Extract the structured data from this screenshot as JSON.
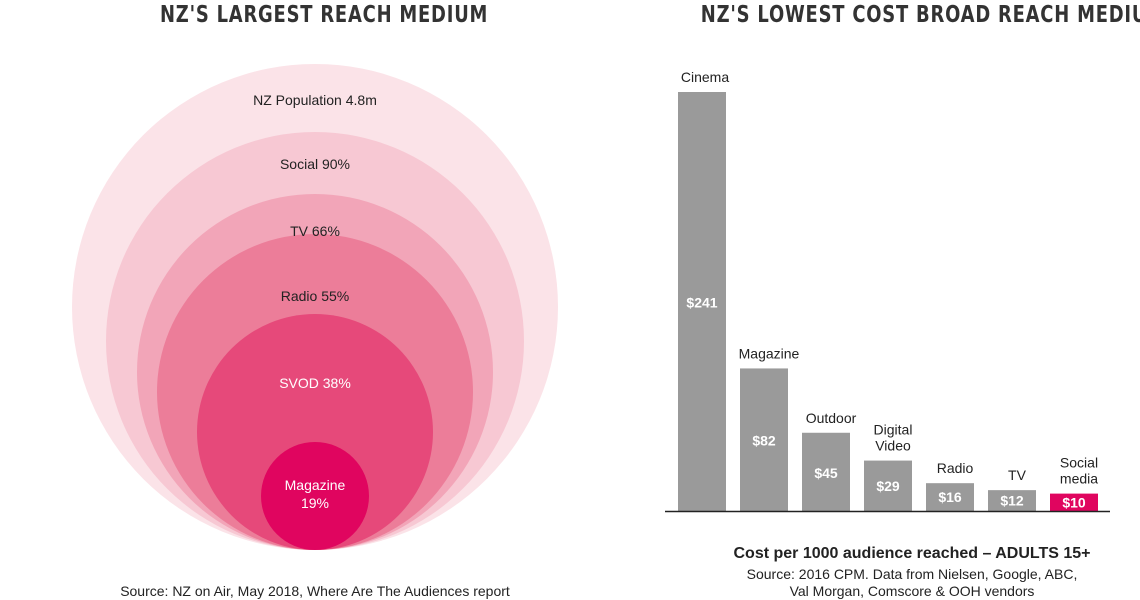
{
  "colors": {
    "ring": [
      "#fbe3e8",
      "#f7c8d3",
      "#f2a5b8",
      "#ec7d99",
      "#e6497a",
      "#e0055f"
    ],
    "bar": "#9a9a9a",
    "highlight": "#e0055f",
    "axis": "#222222"
  },
  "chart_data": [
    {
      "type": "nested-circles",
      "title": "NZ'S LARGEST REACH MEDIUM",
      "items": [
        {
          "label": "NZ Population 4.8m",
          "value": 100
        },
        {
          "label": "Social 90%",
          "value": 90
        },
        {
          "label": "TV 66%",
          "value": 66
        },
        {
          "label": "Radio 55%",
          "value": 55
        },
        {
          "label": "SVOD 38%",
          "value": 38
        },
        {
          "label": "Magazine",
          "label2": "19%",
          "value": 19
        }
      ],
      "source": "Source: NZ on Air, May 2018, Where Are The Audiences report"
    },
    {
      "type": "bar",
      "title": "NZ'S LOWEST COST BROAD REACH MEDIUM",
      "categories": [
        "Cinema",
        "Magazine",
        "Outdoor",
        "Digital Video",
        "Radio",
        "TV",
        "Social media"
      ],
      "category_lines": [
        [
          "Cinema"
        ],
        [
          "Magazine"
        ],
        [
          "Outdoor"
        ],
        [
          "Digital",
          "Video"
        ],
        [
          "Radio"
        ],
        [
          "TV"
        ],
        [
          "Social",
          "media"
        ]
      ],
      "values": [
        241,
        82,
        45,
        29,
        16,
        12,
        10
      ],
      "value_labels": [
        "$241",
        "$82",
        "$45",
        "$29",
        "$16",
        "$12",
        "$10"
      ],
      "highlight_index": 6,
      "ylim": [
        0,
        241
      ],
      "heading": "Cost per 1000 audience reached – ADULTS 15+",
      "source_lines": [
        "Source: 2016 CPM. Data from Nielsen, Google, ABC,",
        "Val Morgan, Comscore & OOH vendors"
      ]
    }
  ]
}
